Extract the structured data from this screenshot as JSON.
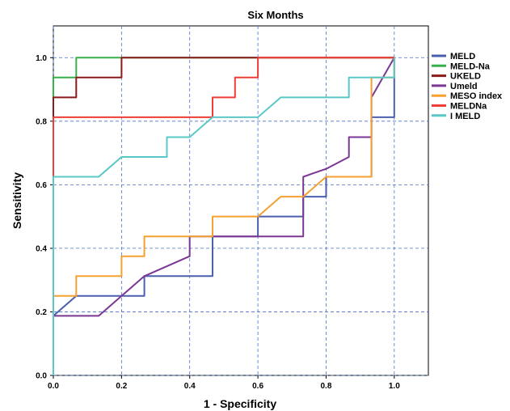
{
  "chart_data": {
    "type": "line",
    "title": "Six Months",
    "xlabel": "1 - Specificity",
    "ylabel": "Sensitivity",
    "xlim": [
      0,
      1.1
    ],
    "ylim": [
      0,
      1.1
    ],
    "xticks": [
      "0.0",
      "0.2",
      "0.4",
      "0.6",
      "0.8",
      "1.0"
    ],
    "yticks": [
      "0.0",
      "0.2",
      "0.4",
      "0.6",
      "0.8",
      "1.0"
    ],
    "grid": true,
    "legend_position": "right",
    "series": [
      {
        "name": "MELD",
        "color": "#4a5fae",
        "points": [
          [
            0,
            0
          ],
          [
            0,
            0.1875
          ],
          [
            0.067,
            0.25
          ],
          [
            0.267,
            0.25
          ],
          [
            0.267,
            0.3125
          ],
          [
            0.467,
            0.3125
          ],
          [
            0.467,
            0.4375
          ],
          [
            0.6,
            0.4375
          ],
          [
            0.6,
            0.5
          ],
          [
            0.733,
            0.5
          ],
          [
            0.733,
            0.5625
          ],
          [
            0.8,
            0.5625
          ],
          [
            0.8,
            0.625
          ],
          [
            0.933,
            0.625
          ],
          [
            0.933,
            0.8125
          ],
          [
            1,
            0.8125
          ],
          [
            1,
            1
          ]
        ]
      },
      {
        "name": "MELD-Na",
        "color": "#36b24a",
        "points": [
          [
            0,
            0
          ],
          [
            0,
            0.9375
          ],
          [
            0.067,
            0.9375
          ],
          [
            0.067,
            1
          ],
          [
            1,
            1
          ]
        ]
      },
      {
        "name": "UKELD",
        "color": "#8b1a1a",
        "points": [
          [
            0,
            0
          ],
          [
            0,
            0.875
          ],
          [
            0.067,
            0.875
          ],
          [
            0.067,
            0.9375
          ],
          [
            0.2,
            0.9375
          ],
          [
            0.2,
            1
          ],
          [
            1,
            1
          ]
        ]
      },
      {
        "name": "Umeld",
        "color": "#7b3794",
        "points": [
          [
            0,
            0
          ],
          [
            0,
            0.1875
          ],
          [
            0.133,
            0.1875
          ],
          [
            0.267,
            0.3125
          ],
          [
            0.4,
            0.375
          ],
          [
            0.4,
            0.4375
          ],
          [
            0.733,
            0.4375
          ],
          [
            0.733,
            0.625
          ],
          [
            0.8,
            0.65
          ],
          [
            0.867,
            0.6875
          ],
          [
            0.867,
            0.75
          ],
          [
            0.933,
            0.75
          ],
          [
            0.933,
            0.875
          ],
          [
            1,
            1
          ]
        ]
      },
      {
        "name": "MESO index",
        "color": "#f5a030",
        "points": [
          [
            0,
            0
          ],
          [
            0,
            0.25
          ],
          [
            0.067,
            0.25
          ],
          [
            0.067,
            0.3125
          ],
          [
            0.2,
            0.3125
          ],
          [
            0.2,
            0.375
          ],
          [
            0.267,
            0.375
          ],
          [
            0.267,
            0.4375
          ],
          [
            0.467,
            0.4375
          ],
          [
            0.467,
            0.5
          ],
          [
            0.6,
            0.5
          ],
          [
            0.667,
            0.5625
          ],
          [
            0.733,
            0.5625
          ],
          [
            0.8,
            0.625
          ],
          [
            0.933,
            0.625
          ],
          [
            0.933,
            0.9375
          ],
          [
            1,
            0.9375
          ],
          [
            1,
            1
          ]
        ]
      },
      {
        "name": "MELDNa",
        "color": "#ef3e36",
        "points": [
          [
            0,
            0
          ],
          [
            0,
            0.8125
          ],
          [
            0.467,
            0.8125
          ],
          [
            0.467,
            0.875
          ],
          [
            0.533,
            0.875
          ],
          [
            0.533,
            0.9375
          ],
          [
            0.6,
            0.9375
          ],
          [
            0.6,
            1
          ],
          [
            1,
            1
          ]
        ]
      },
      {
        "name": "I MELD",
        "color": "#5bc8c8",
        "points": [
          [
            0,
            0
          ],
          [
            0,
            0.625
          ],
          [
            0.133,
            0.625
          ],
          [
            0.2,
            0.6875
          ],
          [
            0.333,
            0.6875
          ],
          [
            0.333,
            0.75
          ],
          [
            0.4,
            0.75
          ],
          [
            0.467,
            0.8125
          ],
          [
            0.6,
            0.8125
          ],
          [
            0.667,
            0.875
          ],
          [
            0.867,
            0.875
          ],
          [
            0.867,
            0.9375
          ],
          [
            1,
            0.9375
          ],
          [
            1,
            1
          ]
        ]
      }
    ]
  }
}
